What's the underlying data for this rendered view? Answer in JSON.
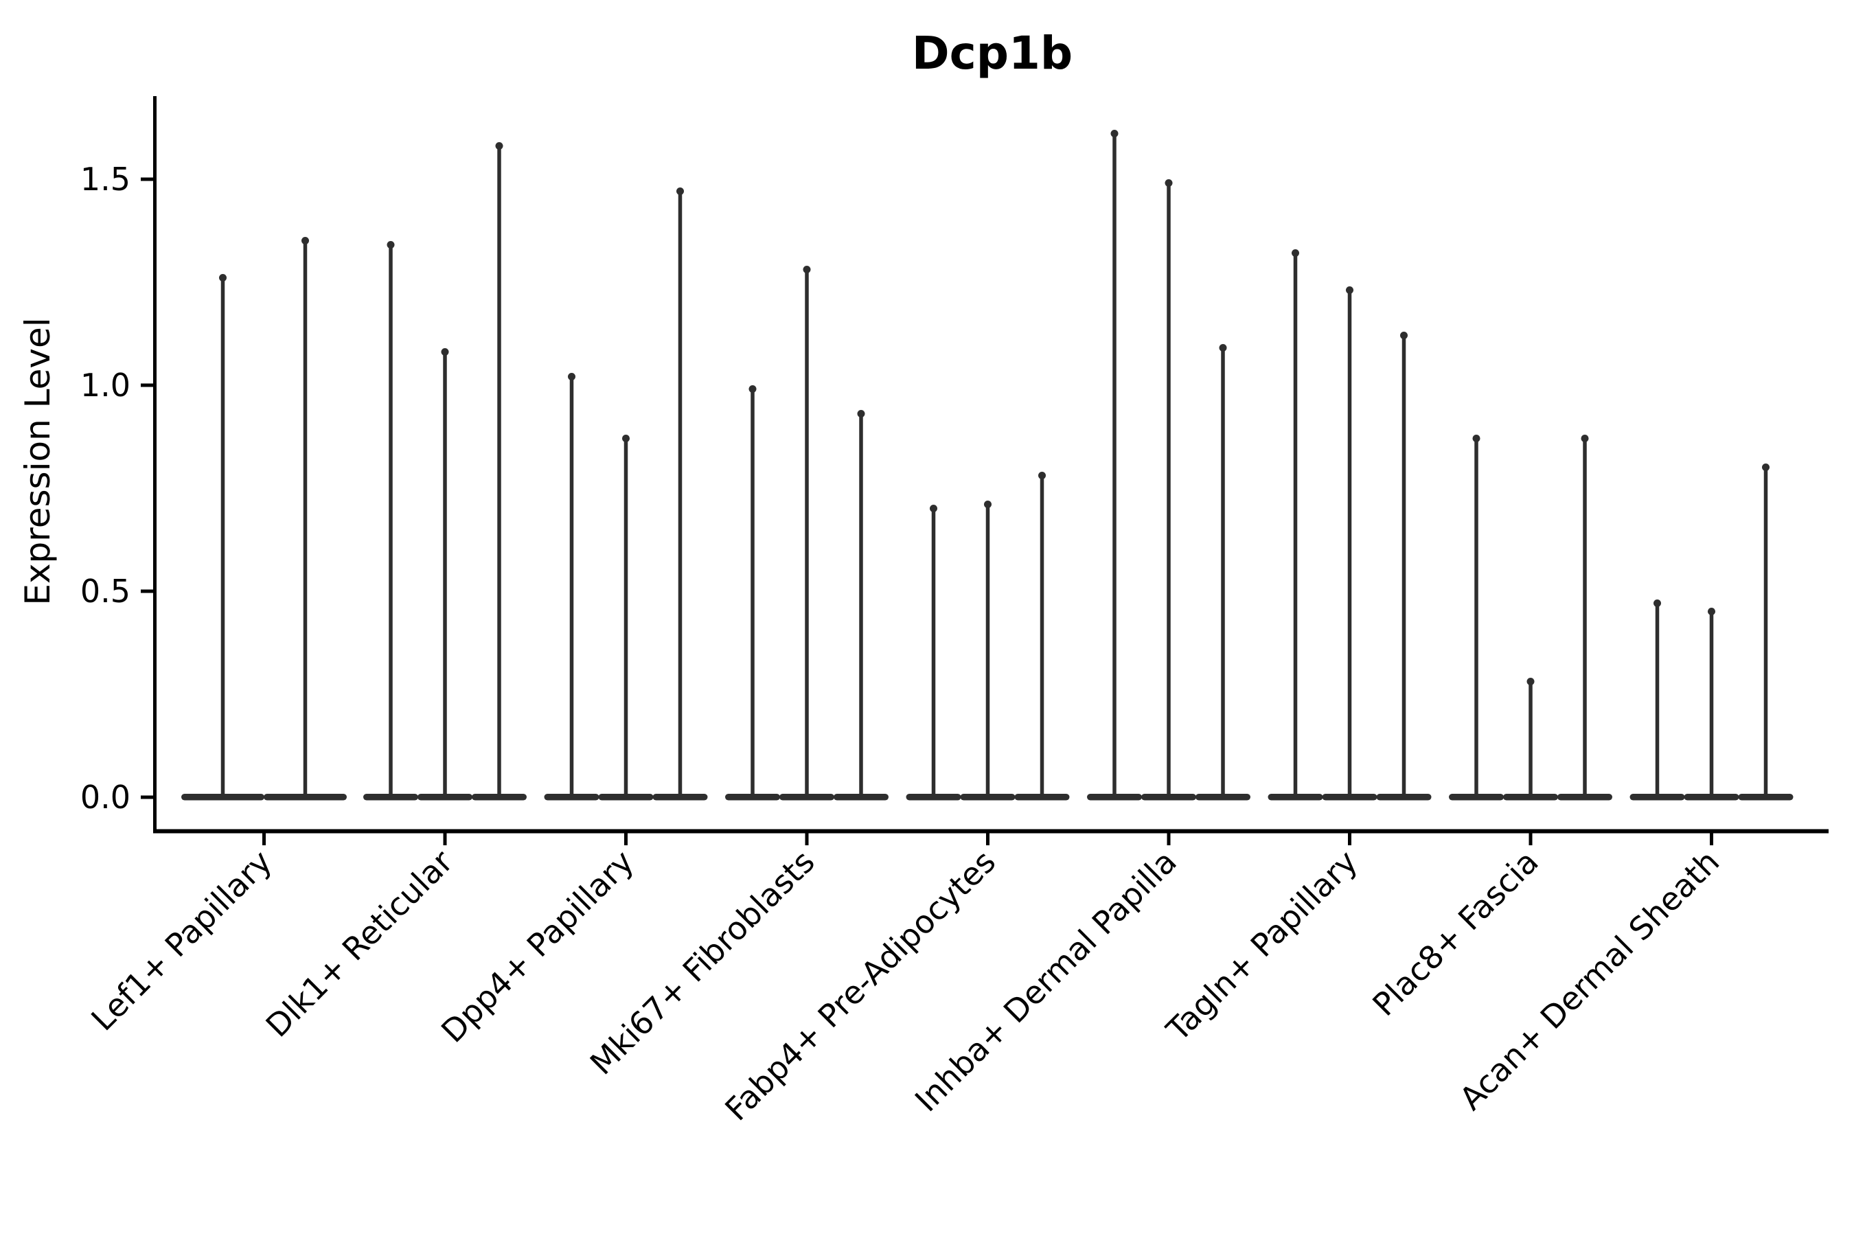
{
  "chart_data": {
    "type": "violin",
    "title": "Dcp1b",
    "ylabel": "Expression Level",
    "xlabel": "",
    "grid": false,
    "legend": "none",
    "background_color": "#ffffff",
    "violin_color": "#2e2e2e",
    "axis_color": "#000000",
    "yticks": [
      "0.0",
      "0.5",
      "1.0",
      "1.5"
    ],
    "ylim": [
      -0.08,
      1.74
    ],
    "groups": [
      {
        "category": "Lef1+ Papillary",
        "violin_peaks": [
          1.27,
          1.36
        ]
      },
      {
        "category": "Dlk1+ Reticular",
        "violin_peaks": [
          1.35,
          1.09,
          1.59
        ]
      },
      {
        "category": "Dpp4+ Papillary",
        "violin_peaks": [
          1.03,
          0.88,
          1.48
        ]
      },
      {
        "category": "Mki67+ Fibroblasts",
        "violin_peaks": [
          1.0,
          1.29,
          0.94
        ]
      },
      {
        "category": "Fabp4+ Pre-Adipocytes",
        "violin_peaks": [
          0.71,
          0.72,
          0.79
        ]
      },
      {
        "category": "Inhba+ Dermal Papilla",
        "violin_peaks": [
          1.62,
          1.5,
          1.1
        ]
      },
      {
        "category": "Tagln+ Papillary",
        "violin_peaks": [
          1.33,
          1.24,
          1.13
        ]
      },
      {
        "category": "Plac8+ Fascia",
        "violin_peaks": [
          0.88,
          0.29,
          0.88
        ]
      },
      {
        "category": "Acan+ Dermal Sheath",
        "violin_peaks": [
          0.48,
          0.46,
          0.81
        ]
      }
    ]
  }
}
